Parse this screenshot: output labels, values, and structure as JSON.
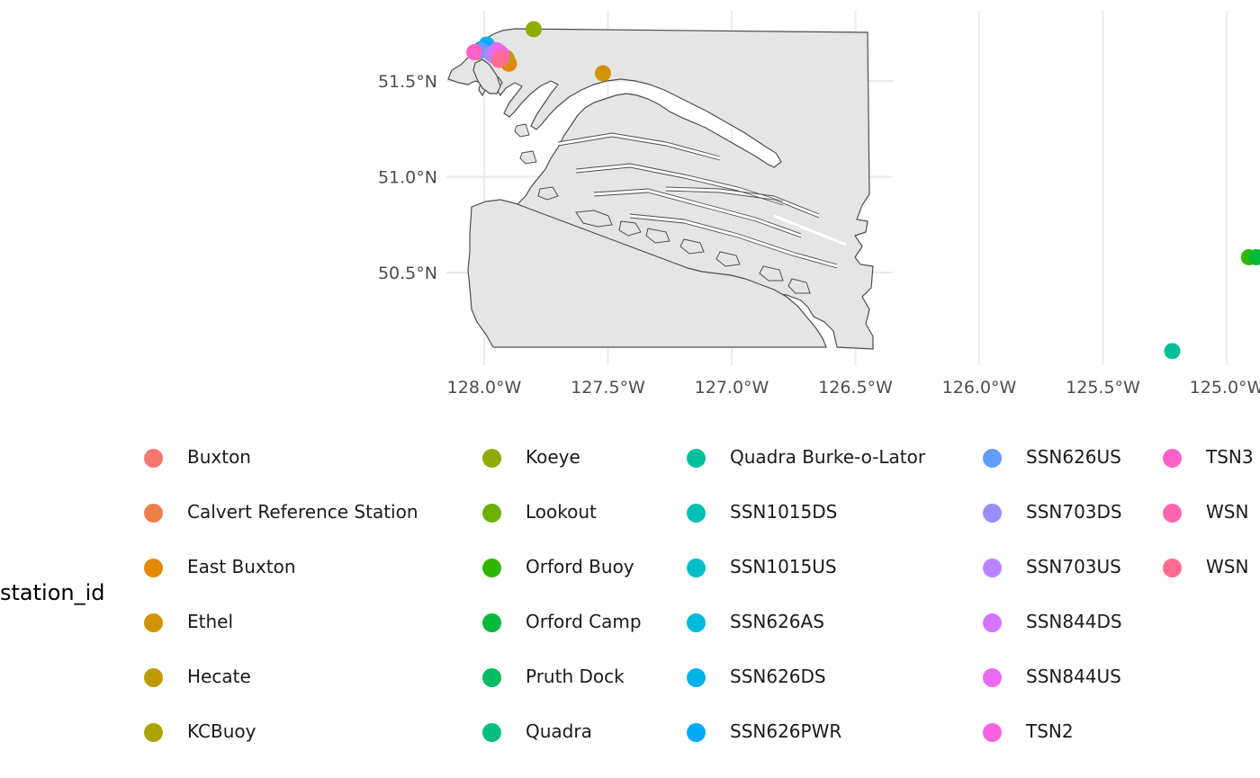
{
  "chart_data": {
    "type": "scatter",
    "projection": "map of land polygon with station points",
    "x_axis": {
      "ticks": [
        {
          "value": -128.0,
          "label": "128.0°W"
        },
        {
          "value": -127.5,
          "label": "127.5°W"
        },
        {
          "value": -127.0,
          "label": "127.0°W"
        },
        {
          "value": -126.5,
          "label": "126.5°W"
        },
        {
          "value": -126.0,
          "label": "126.0°W"
        },
        {
          "value": -125.5,
          "label": "125.5°W"
        },
        {
          "value": -125.0,
          "label": "125.0°W"
        }
      ]
    },
    "y_axis": {
      "ticks": [
        {
          "value": 51.5,
          "label": "51.5°N"
        },
        {
          "value": 51.0,
          "label": "51.0°N"
        },
        {
          "value": 50.5,
          "label": "50.5°N"
        }
      ]
    },
    "xlim": [
      -128.1,
      -124.85
    ],
    "ylim": [
      50.06,
      51.78
    ],
    "grid": true,
    "land_color": "#e5e5e5",
    "coast_color": "#4d4d4d",
    "legend": {
      "title": "station_id",
      "placement": "bottom",
      "columns": [
        [
          "Buxton",
          "Calvert Reference Station",
          "East Buxton",
          "Ethel",
          "Hecate",
          "KCBuoy"
        ],
        [
          "Koeye",
          "Lookout",
          "Orford Buoy",
          "Orford Camp",
          "Pruth Dock",
          "Quadra"
        ],
        [
          "Quadra Burke-o-Lator",
          "SSN1015DS",
          "SSN1015US",
          "SSN626AS",
          "SSN626DS",
          "SSN626PWR"
        ],
        [
          "SSN626US",
          "SSN703DS",
          "SSN703US",
          "SSN844DS",
          "SSN844US",
          "TSN2"
        ],
        [
          "TSN3",
          "WSN",
          "WSN"
        ]
      ],
      "column_x": [
        160,
        536,
        763,
        1092,
        1292
      ]
    },
    "series": [
      {
        "name": "Buxton",
        "color": "#F8766D",
        "lon": -127.95,
        "lat": 51.65
      },
      {
        "name": "Calvert Reference Station",
        "color": "#EF7F49",
        "lon": -127.93,
        "lat": 51.63
      },
      {
        "name": "East Buxton",
        "color": "#E38900",
        "lon": -127.9,
        "lat": 51.59
      },
      {
        "name": "Ethel",
        "color": "#D39200",
        "lon": -127.52,
        "lat": 51.54
      },
      {
        "name": "Hecate",
        "color": "#C09B00",
        "lon": -127.91,
        "lat": 51.62
      },
      {
        "name": "KCBuoy",
        "color": "#A9A400",
        "lon": -128.03,
        "lat": 51.65
      },
      {
        "name": "Koeye",
        "color": "#8EAB00",
        "lon": -127.8,
        "lat": 51.77
      },
      {
        "name": "Lookout",
        "color": "#6BB100",
        "lon": -127.95,
        "lat": 51.66
      },
      {
        "name": "Orford Buoy",
        "color": "#31B700",
        "lon": -124.91,
        "lat": 50.58
      },
      {
        "name": "Orford Camp",
        "color": "#00BA38",
        "lon": -124.88,
        "lat": 50.58
      },
      {
        "name": "Pruth Dock",
        "color": "#00BD62",
        "lon": -127.94,
        "lat": 51.65
      },
      {
        "name": "Quadra",
        "color": "#00BF80",
        "lon": -127.95,
        "lat": 51.64
      },
      {
        "name": "Quadra Burke-o-Lator",
        "color": "#00C09B",
        "lon": -125.22,
        "lat": 50.09
      },
      {
        "name": "SSN1015DS",
        "color": "#00C0B3",
        "lon": -127.97,
        "lat": 51.66
      },
      {
        "name": "SSN1015US",
        "color": "#00BDC9",
        "lon": -127.98,
        "lat": 51.67
      },
      {
        "name": "SSN626AS",
        "color": "#00B9DC",
        "lon": -127.99,
        "lat": 51.69
      },
      {
        "name": "SSN626DS",
        "color": "#00B2EC",
        "lon": -127.99,
        "lat": 51.68
      },
      {
        "name": "SSN626PWR",
        "color": "#00A9FA",
        "lon": -128.0,
        "lat": 51.67
      },
      {
        "name": "SSN626US",
        "color": "#619CFF",
        "lon": -128.01,
        "lat": 51.66
      },
      {
        "name": "SSN703DS",
        "color": "#958FFF",
        "lon": -127.97,
        "lat": 51.64
      },
      {
        "name": "SSN703US",
        "color": "#B983FF",
        "lon": -127.96,
        "lat": 51.63
      },
      {
        "name": "SSN844DS",
        "color": "#D575FE",
        "lon": -127.95,
        "lat": 51.66
      },
      {
        "name": "SSN844US",
        "color": "#E96AF1",
        "lon": -127.94,
        "lat": 51.65
      },
      {
        "name": "TSN2",
        "color": "#F763E0",
        "lon": -127.93,
        "lat": 51.64
      },
      {
        "name": "TSN3",
        "color": "#FF61C9",
        "lon": -128.04,
        "lat": 51.65
      },
      {
        "name": "WSN",
        "color": "#FF65AE",
        "lon": -127.93,
        "lat": 51.62
      },
      {
        "name": "WSN",
        "color": "#FF6C91",
        "lon": -127.94,
        "lat": 51.61
      }
    ]
  }
}
